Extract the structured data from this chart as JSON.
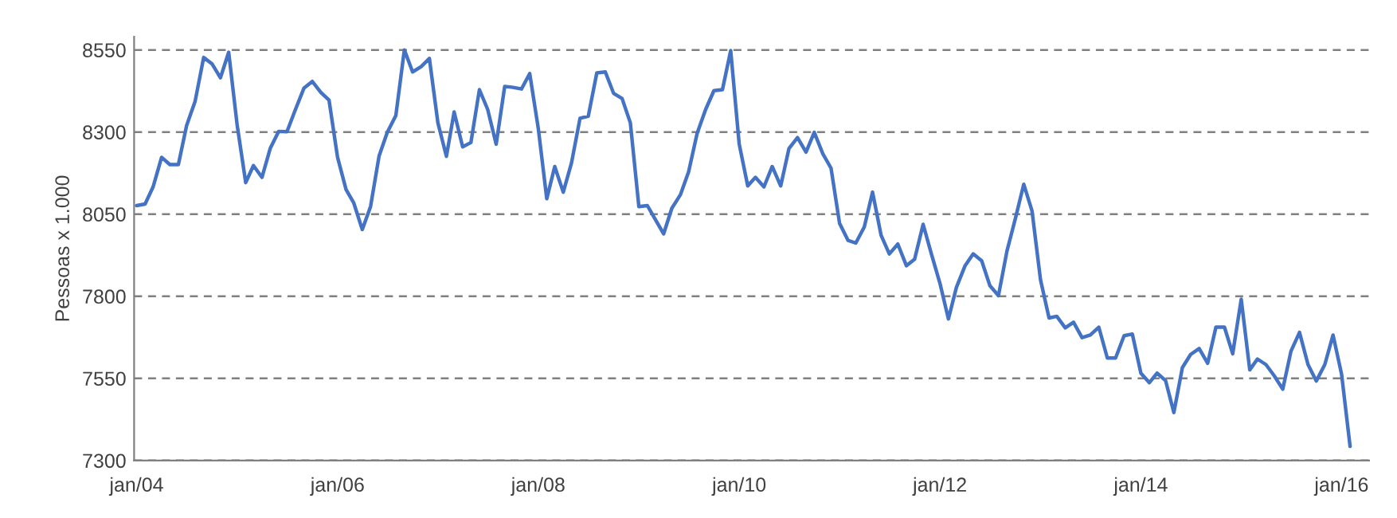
{
  "chart_data": {
    "type": "line",
    "ylabel": "Pessoas x 1.000",
    "x": [
      "2004-01",
      "2004-02",
      "2004-03",
      "2004-04",
      "2004-05",
      "2004-06",
      "2004-07",
      "2004-08",
      "2004-09",
      "2004-10",
      "2004-11",
      "2004-12",
      "2005-01",
      "2005-02",
      "2005-03",
      "2005-04",
      "2005-05",
      "2005-06",
      "2005-07",
      "2005-08",
      "2005-09",
      "2005-10",
      "2005-11",
      "2005-12",
      "2006-01",
      "2006-02",
      "2006-03",
      "2006-04",
      "2006-05",
      "2006-06",
      "2006-07",
      "2006-08",
      "2006-09",
      "2006-10",
      "2006-11",
      "2006-12",
      "2007-01",
      "2007-02",
      "2007-03",
      "2007-04",
      "2007-05",
      "2007-06",
      "2007-07",
      "2007-08",
      "2007-09",
      "2007-10",
      "2007-11",
      "2007-12",
      "2008-01",
      "2008-02",
      "2008-03",
      "2008-04",
      "2008-05",
      "2008-06",
      "2008-07",
      "2008-08",
      "2008-09",
      "2008-10",
      "2008-11",
      "2008-12",
      "2009-01",
      "2009-02",
      "2009-03",
      "2009-04",
      "2009-05",
      "2009-06",
      "2009-07",
      "2009-08",
      "2009-09",
      "2009-10",
      "2009-11",
      "2009-12",
      "2010-01",
      "2010-02",
      "2010-03",
      "2010-04",
      "2010-05",
      "2010-06",
      "2010-07",
      "2010-08",
      "2010-09",
      "2010-10",
      "2010-11",
      "2010-12",
      "2011-01",
      "2011-02",
      "2011-03",
      "2011-04",
      "2011-05",
      "2011-06",
      "2011-07",
      "2011-08",
      "2011-09",
      "2011-10",
      "2011-11",
      "2011-12",
      "2012-01",
      "2012-02",
      "2012-03",
      "2012-04",
      "2012-05",
      "2012-06",
      "2012-07",
      "2012-08",
      "2012-09",
      "2012-10",
      "2012-11",
      "2012-12",
      "2013-01",
      "2013-02",
      "2013-03",
      "2013-04",
      "2013-05",
      "2013-06",
      "2013-07",
      "2013-08",
      "2013-09",
      "2013-10",
      "2013-11",
      "2013-12",
      "2014-01",
      "2014-02",
      "2014-03",
      "2014-04",
      "2014-05",
      "2014-06",
      "2014-07",
      "2014-08",
      "2014-09",
      "2014-10",
      "2014-11",
      "2014-12",
      "2015-01",
      "2015-02",
      "2015-03",
      "2015-04",
      "2015-05",
      "2015-06",
      "2015-07",
      "2015-08",
      "2015-09",
      "2015-10",
      "2015-11",
      "2015-12",
      "2016-01",
      "2016-02"
    ],
    "series": [
      {
        "color": "#4472c4",
        "values": [
          8076,
          8081,
          8133,
          8223,
          8201,
          8201,
          8320,
          8394,
          8527,
          8508,
          8465,
          8543,
          8320,
          8146,
          8198,
          8162,
          8250,
          8302,
          8301,
          8369,
          8434,
          8454,
          8421,
          8397,
          8223,
          8125,
          8084,
          8003,
          8073,
          8227,
          8299,
          8350,
          8550,
          8483,
          8499,
          8524,
          8328,
          8226,
          8361,
          8255,
          8268,
          8429,
          8369,
          8263,
          8439,
          8436,
          8431,
          8478,
          8312,
          8097,
          8195,
          8117,
          8206,
          8342,
          8348,
          8480,
          8483,
          8418,
          8402,
          8328,
          8073,
          8076,
          8035,
          7990,
          8068,
          8109,
          8179,
          8296,
          8369,
          8426,
          8429,
          8548,
          8263,
          8136,
          8162,
          8133,
          8195,
          8136,
          8250,
          8283,
          8239,
          8299,
          8234,
          8190,
          8022,
          7970,
          7962,
          8011,
          8117,
          7986,
          7929,
          7959,
          7893,
          7913,
          8019,
          7929,
          7840,
          7731,
          7827,
          7892,
          7929,
          7908,
          7832,
          7802,
          7938,
          8035,
          8141,
          8060,
          7850,
          7734,
          7739,
          7704,
          7721,
          7674,
          7682,
          7706,
          7612,
          7612,
          7680,
          7685,
          7566,
          7537,
          7566,
          7543,
          7446,
          7583,
          7623,
          7641,
          7596,
          7706,
          7706,
          7625,
          7791,
          7576,
          7609,
          7592,
          7558,
          7517,
          7633,
          7690,
          7592,
          7542,
          7592,
          7682,
          7563,
          7343
        ]
      }
    ],
    "xlim": [
      "2003-12-23",
      "2016-04-10"
    ],
    "xticks": [
      {
        "value": "2004-01",
        "label": "jan/04"
      },
      {
        "value": "2006-01",
        "label": "jan/06"
      },
      {
        "value": "2008-01",
        "label": "jan/08"
      },
      {
        "value": "2010-01",
        "label": "jan/10"
      },
      {
        "value": "2012-01",
        "label": "jan/12"
      },
      {
        "value": "2014-01",
        "label": "jan/14"
      },
      {
        "value": "2016-01",
        "label": "jan/16"
      }
    ],
    "ylim": [
      7300,
      8590
    ],
    "yticks": [
      7300,
      7550,
      7800,
      8050,
      8300,
      8550
    ],
    "grid": "y",
    "line_style": "solid",
    "marker": "none"
  }
}
